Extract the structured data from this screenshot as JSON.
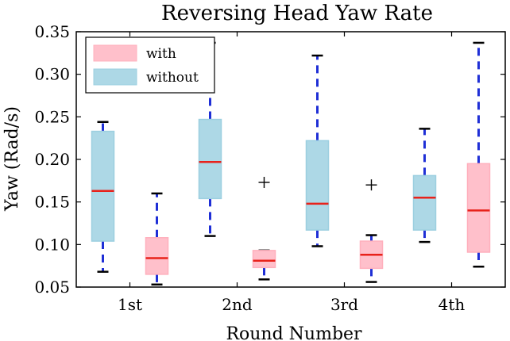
{
  "chart_data": {
    "type": "box",
    "title": "Reversing Head Yaw Rate",
    "xlabel": "Round Number",
    "ylabel": "Yaw (Rad/s)",
    "ylim": [
      0.05,
      0.35
    ],
    "yticks": [
      "0.05",
      "0.10",
      "0.15",
      "0.20",
      "0.25",
      "0.30",
      "0.35"
    ],
    "categories": [
      "1st",
      "2nd",
      "3rd",
      "4th"
    ],
    "legend_position": "top-left",
    "series": [
      {
        "name": "with",
        "color": "#ffc0cb",
        "edge_color": "#ffb0bd",
        "boxes": [
          {
            "whisker_low": 0.053,
            "q1": 0.065,
            "median": 0.084,
            "q3": 0.108,
            "whisker_high": 0.16,
            "outliers": []
          },
          {
            "whisker_low": 0.059,
            "q1": 0.073,
            "median": 0.081,
            "q3": 0.093,
            "whisker_high": 0.093,
            "outliers": [
              0.173
            ]
          },
          {
            "whisker_low": 0.056,
            "q1": 0.072,
            "median": 0.088,
            "q3": 0.104,
            "whisker_high": 0.111,
            "outliers": [
              0.17
            ]
          },
          {
            "whisker_low": 0.074,
            "q1": 0.091,
            "median": 0.14,
            "q3": 0.195,
            "whisker_high": 0.337,
            "outliers": []
          }
        ]
      },
      {
        "name": "without",
        "color": "#add8e6",
        "edge_color": "#9ccfe0",
        "boxes": [
          {
            "whisker_low": 0.068,
            "q1": 0.104,
            "median": 0.163,
            "q3": 0.233,
            "whisker_high": 0.244,
            "outliers": []
          },
          {
            "whisker_low": 0.11,
            "q1": 0.154,
            "median": 0.197,
            "q3": 0.247,
            "whisker_high": 0.337,
            "outliers": []
          },
          {
            "whisker_low": 0.098,
            "q1": 0.117,
            "median": 0.148,
            "q3": 0.222,
            "whisker_high": 0.322,
            "outliers": []
          },
          {
            "whisker_low": 0.103,
            "q1": 0.117,
            "median": 0.155,
            "q3": 0.181,
            "whisker_high": 0.236,
            "outliers": []
          }
        ]
      }
    ],
    "median_color": "#e8221b",
    "whisker_color": "#1f2fd6"
  }
}
